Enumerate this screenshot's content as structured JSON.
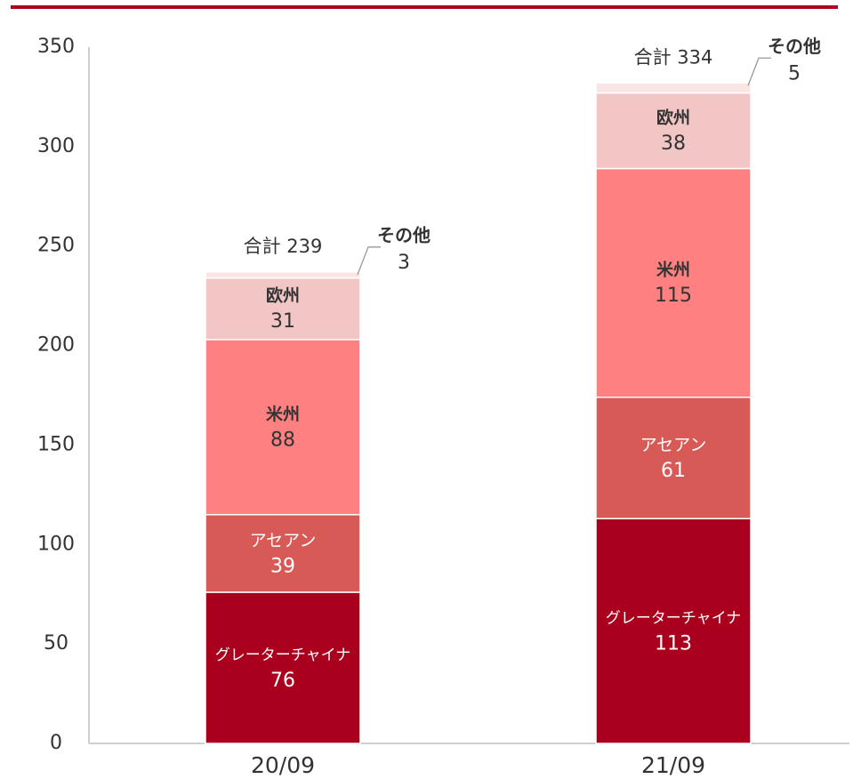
{
  "chart_data": {
    "type": "bar",
    "stacked": true,
    "categories": [
      "20/09",
      "21/09"
    ],
    "series": [
      {
        "name": "グレーターチャイナ",
        "values": [
          76,
          113
        ],
        "color": "#ab001d",
        "label_color": "#ffffff"
      },
      {
        "name": "アセアン",
        "values": [
          39,
          61
        ],
        "color": "#d85a56",
        "label_color": "#ffffff"
      },
      {
        "name": "米州",
        "values": [
          88,
          115
        ],
        "color": "#ff8080",
        "label_color": "#333333"
      },
      {
        "name": "欧州",
        "values": [
          31,
          38
        ],
        "color": "#f3c6c6",
        "label_color": "#333333"
      },
      {
        "name": "その他",
        "values": [
          3,
          5
        ],
        "color": "#fbe4e4",
        "label_color": "#333333"
      }
    ],
    "totals": [
      {
        "label": "合計",
        "value": 239
      },
      {
        "label": "合計",
        "value": 334
      }
    ],
    "ylim": [
      0,
      350
    ],
    "yticks": [
      "0",
      "50",
      "100",
      "150",
      "200",
      "250",
      "300",
      "350"
    ],
    "xlabel": "",
    "ylabel": "",
    "title": "",
    "legend": "none",
    "grid": false,
    "accent_color": "#b0001e",
    "axis_color": "#bfbfbf"
  }
}
